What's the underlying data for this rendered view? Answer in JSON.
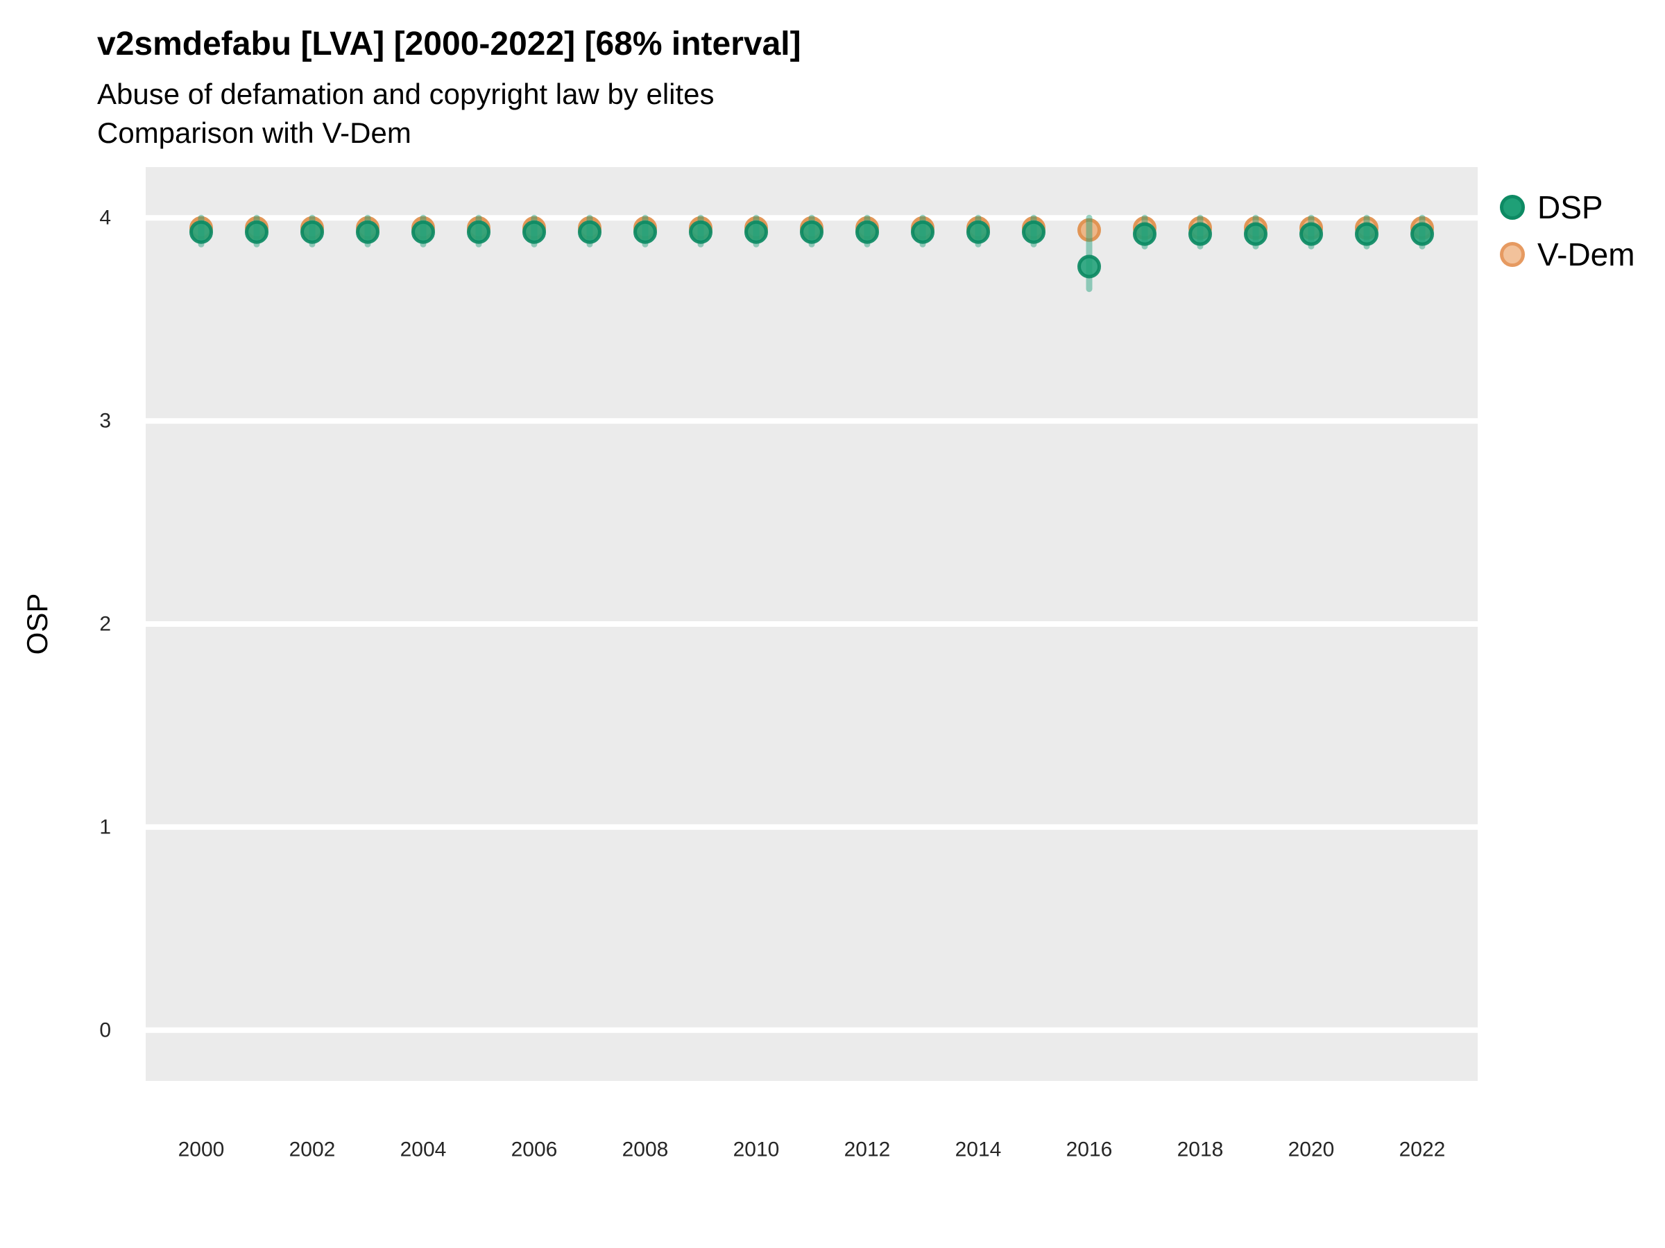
{
  "chart_data": {
    "type": "scatter",
    "title": "v2smdefabu [LVA] [2000-2022] [68% interval]",
    "subtitle": "Abuse of defamation and copyright law by elites",
    "subtitle2": "Comparison with V-Dem",
    "xlabel": "",
    "ylabel": "OSP",
    "ylim": [
      -0.25,
      4.25
    ],
    "yticks": [
      0,
      1,
      2,
      3,
      4
    ],
    "xlim": [
      1999,
      2023
    ],
    "xticks": [
      2000,
      2002,
      2004,
      2006,
      2008,
      2010,
      2012,
      2014,
      2016,
      2018,
      2020,
      2022
    ],
    "grid": "major-horizontal-only",
    "legend_position": "right-top",
    "legend": [
      {
        "label": "DSP",
        "fill": "#1fa077",
        "stroke": "#0d8a63"
      },
      {
        "label": "V-Dem",
        "fill": "#f2c29b",
        "stroke": "#e69a61"
      }
    ],
    "x": [
      2000,
      2001,
      2002,
      2003,
      2004,
      2005,
      2006,
      2007,
      2008,
      2009,
      2010,
      2011,
      2012,
      2013,
      2014,
      2015,
      2016,
      2017,
      2018,
      2019,
      2020,
      2021,
      2022
    ],
    "series": [
      {
        "name": "DSP",
        "values": [
          3.93,
          3.93,
          3.93,
          3.93,
          3.93,
          3.93,
          3.93,
          3.93,
          3.93,
          3.93,
          3.93,
          3.93,
          3.93,
          3.93,
          3.93,
          3.93,
          3.76,
          3.92,
          3.92,
          3.92,
          3.92,
          3.92,
          3.92
        ],
        "lower68": [
          3.87,
          3.87,
          3.87,
          3.87,
          3.87,
          3.87,
          3.87,
          3.87,
          3.87,
          3.87,
          3.87,
          3.87,
          3.87,
          3.87,
          3.87,
          3.87,
          3.65,
          3.86,
          3.86,
          3.86,
          3.86,
          3.86,
          3.86
        ],
        "upper68": [
          4.0,
          4.0,
          4.0,
          4.0,
          4.0,
          4.0,
          4.0,
          4.0,
          4.0,
          4.0,
          4.0,
          4.0,
          4.0,
          4.0,
          4.0,
          4.0,
          4.0,
          4.0,
          4.0,
          4.0,
          4.0,
          4.0,
          4.0
        ]
      },
      {
        "name": "V-Dem",
        "values": [
          3.95,
          3.95,
          3.95,
          3.95,
          3.95,
          3.95,
          3.95,
          3.95,
          3.95,
          3.95,
          3.95,
          3.95,
          3.95,
          3.95,
          3.95,
          3.95,
          3.94,
          3.95,
          3.95,
          3.95,
          3.95,
          3.95,
          3.95
        ]
      }
    ],
    "colors": {
      "dsp_fill": "#1fa077",
      "dsp_stroke": "#0d8a63",
      "vdem_fill": "#edb382",
      "vdem_stroke": "#e0914f",
      "errorbar": "rgba(27,158,119,0.45)",
      "panel_background": "#ebebeb",
      "gridline": "#ffffff",
      "tick_text": "#262626"
    }
  }
}
